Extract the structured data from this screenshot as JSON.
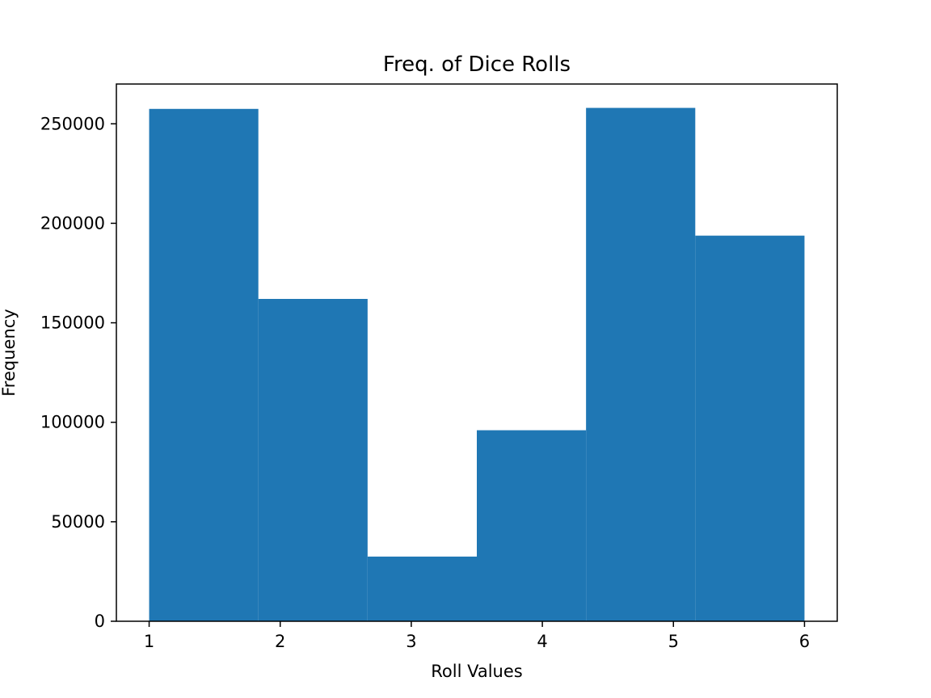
{
  "chart_data": {
    "type": "bar",
    "title": "Freq. of Dice Rolls",
    "xlabel": "Roll Values",
    "ylabel": "Frequency",
    "bins": [
      {
        "start": 1.0,
        "end": 1.8333,
        "value": 257500
      },
      {
        "start": 1.8333,
        "end": 2.6667,
        "value": 162000
      },
      {
        "start": 2.6667,
        "end": 3.5,
        "value": 32500
      },
      {
        "start": 3.5,
        "end": 4.3333,
        "value": 96000
      },
      {
        "start": 4.3333,
        "end": 5.1667,
        "value": 258000
      },
      {
        "start": 5.1667,
        "end": 6.0,
        "value": 193800
      }
    ],
    "xlim": [
      0.75,
      6.25
    ],
    "ylim": [
      0,
      270000
    ],
    "xticks": [
      1,
      2,
      3,
      4,
      5,
      6
    ],
    "yticks": [
      0,
      50000,
      100000,
      150000,
      200000,
      250000
    ],
    "grid": false,
    "bar_color": "#1f77b4"
  }
}
